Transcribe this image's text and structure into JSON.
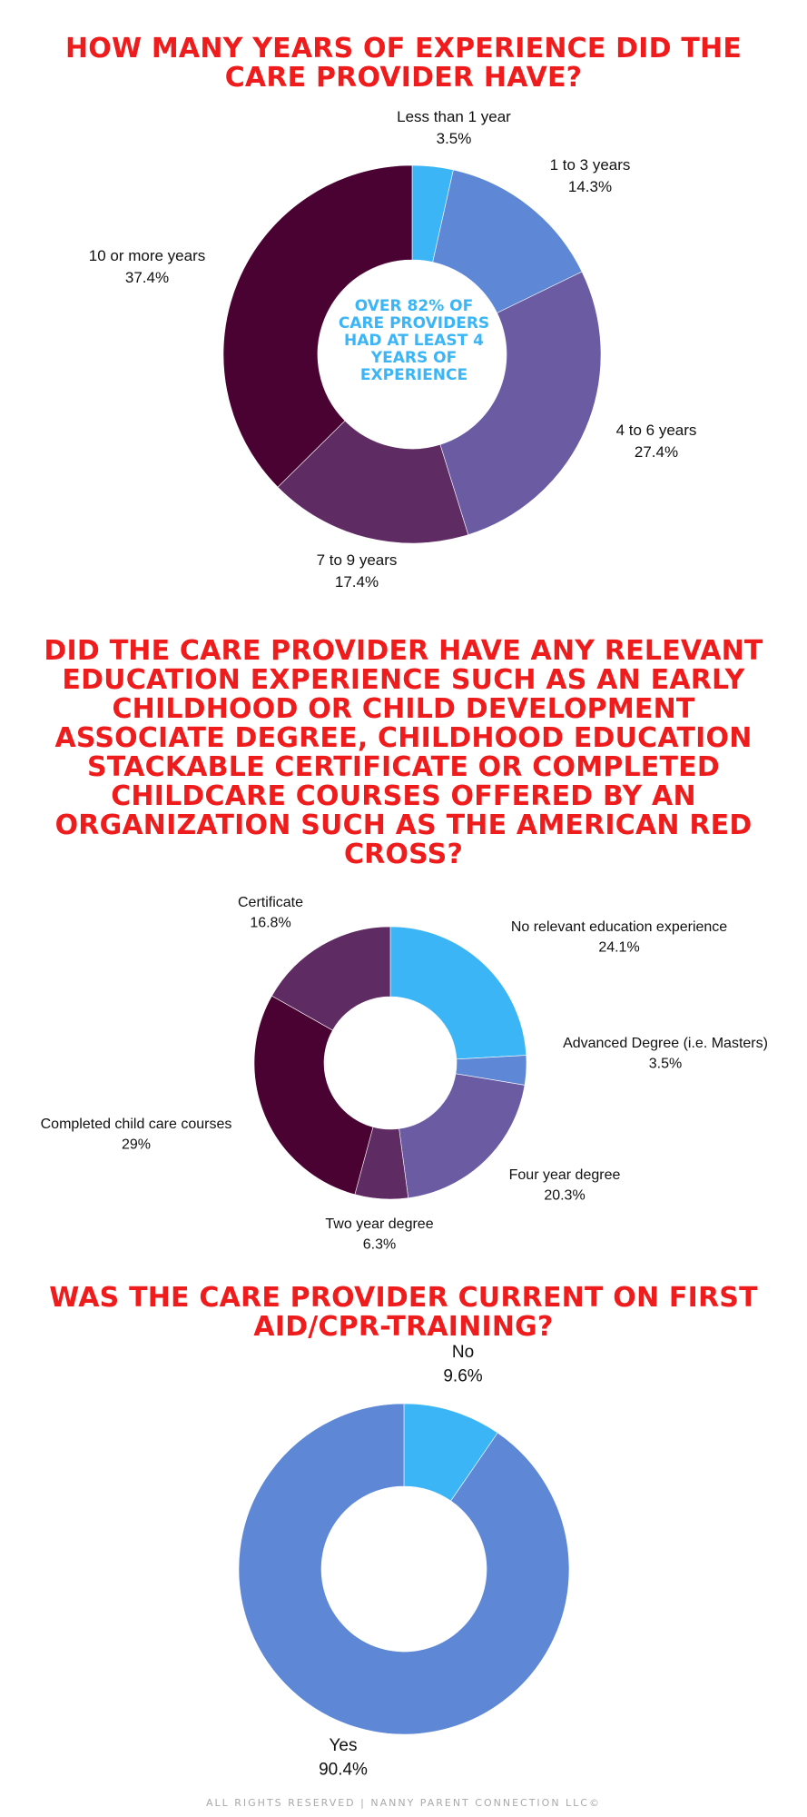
{
  "charts": {
    "experience": {
      "title": "HOW MANY YEARS OF EXPERIENCE DID THE CARE PROVIDER HAVE?",
      "center_note": "OVER 82% OF CARE PROVIDERS HAD AT LEAST 4 YEARS OF EXPERIENCE"
    },
    "education": {
      "title": "DID THE CARE PROVIDER HAVE ANY RELEVANT EDUCATION EXPERIENCE SUCH AS AN EARLY CHILDHOOD OR CHILD DEVELOPMENT ASSOCIATE DEGREE, CHILDHOOD EDUCATION STACKABLE CERTIFICATE OR COMPLETED CHILDCARE COURSES OFFERED BY AN ORGANIZATION SUCH AS THE AMERICAN RED CROSS?"
    },
    "first_aid": {
      "title": "WAS THE CARE PROVIDER CURRENT ON FIRST AID/CPR-TRAINING?"
    }
  },
  "footer": "ALL RIGHTS RESERVED | NANNY PARENT CONNECTION LLC©",
  "colors": {
    "title": "#ee1c1c",
    "center_note": "#3bb5f5",
    "footer": "#a9a9a9"
  },
  "chart_data": [
    {
      "type": "pie",
      "donut": true,
      "title": "HOW MANY YEARS OF EXPERIENCE DID THE CARE PROVIDER HAVE?",
      "categories": [
        "Less than 1 year",
        "1 to 3 years",
        "4 to 6 years",
        "7 to 9 years",
        "10 or more years"
      ],
      "values": [
        3.5,
        14.3,
        27.4,
        17.4,
        37.4
      ],
      "value_labels": [
        "3.5%",
        "14.3%",
        "27.4%",
        "17.4%",
        "37.4%"
      ],
      "colors": [
        "#3bb5f5",
        "#5e88d6",
        "#6a5ba3",
        "#5e2b62",
        "#4a0233"
      ],
      "annotation": "OVER 82% OF CARE PROVIDERS HAD AT LEAST 4 YEARS OF EXPERIENCE"
    },
    {
      "type": "pie",
      "donut": true,
      "title": "DID THE CARE PROVIDER HAVE ANY RELEVANT EDUCATION EXPERIENCE SUCH AS AN EARLY CHILDHOOD OR CHILD DEVELOPMENT ASSOCIATE DEGREE, CHILDHOOD EDUCATION STACKABLE CERTIFICATE OR COMPLETED CHILDCARE COURSES OFFERED BY AN ORGANIZATION SUCH AS THE AMERICAN RED CROSS?",
      "categories": [
        "No relevant education experience",
        "Advanced Degree (i.e. Masters)",
        "Four year degree",
        "Two year degree",
        "Completed child care courses",
        "Certificate"
      ],
      "values": [
        24.1,
        3.5,
        20.3,
        6.3,
        29,
        16.8
      ],
      "value_labels": [
        "24.1%",
        "3.5%",
        "20.3%",
        "6.3%",
        "29%",
        "16.8%"
      ],
      "colors": [
        "#3bb5f5",
        "#5e88d6",
        "#6a5ba3",
        "#5e2b62",
        "#4a0233",
        "#5e2b62"
      ]
    },
    {
      "type": "pie",
      "donut": true,
      "title": "WAS THE CARE PROVIDER CURRENT ON FIRST AID/CPR-TRAINING?",
      "categories": [
        "No",
        "Yes"
      ],
      "values": [
        9.6,
        90.4
      ],
      "value_labels": [
        "9.6%",
        "90.4%"
      ],
      "colors": [
        "#3bb5f5",
        "#5e88d6"
      ]
    }
  ]
}
